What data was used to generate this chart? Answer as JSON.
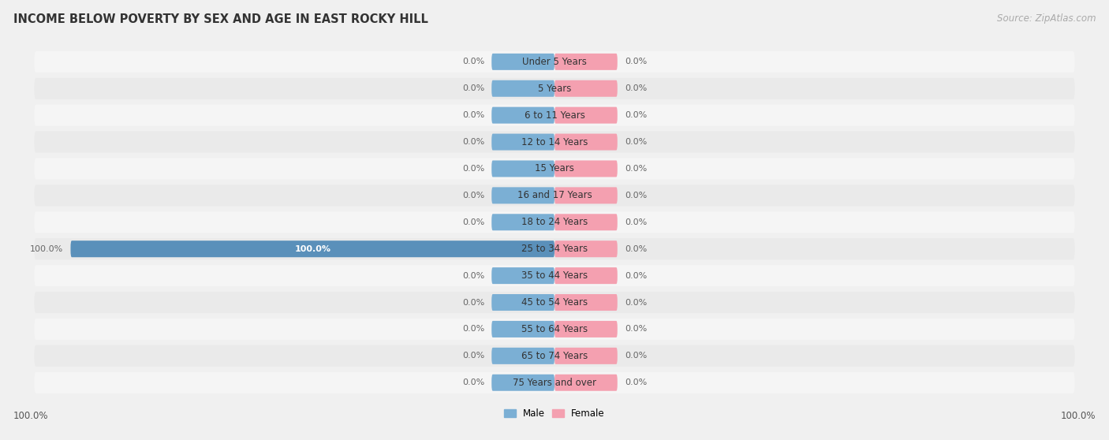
{
  "title": "INCOME BELOW POVERTY BY SEX AND AGE IN EAST ROCKY HILL",
  "source": "Source: ZipAtlas.com",
  "categories": [
    "Under 5 Years",
    "5 Years",
    "6 to 11 Years",
    "12 to 14 Years",
    "15 Years",
    "16 and 17 Years",
    "18 to 24 Years",
    "25 to 34 Years",
    "35 to 44 Years",
    "45 to 54 Years",
    "55 to 64 Years",
    "65 to 74 Years",
    "75 Years and over"
  ],
  "male_values": [
    0.0,
    0.0,
    0.0,
    0.0,
    0.0,
    0.0,
    0.0,
    100.0,
    0.0,
    0.0,
    0.0,
    0.0,
    0.0
  ],
  "female_values": [
    0.0,
    0.0,
    0.0,
    0.0,
    0.0,
    0.0,
    0.0,
    0.0,
    0.0,
    0.0,
    0.0,
    0.0,
    0.0
  ],
  "male_color": "#7bafd4",
  "male_color_dark": "#5a90ba",
  "female_color": "#f4a0b0",
  "male_label": "Male",
  "female_label": "Female",
  "bg_color": "#f0f0f0",
  "row_colors": [
    "#f5f5f5",
    "#eaeaea"
  ],
  "xlim_left": -100,
  "xlim_right": 100,
  "default_bar_extent": 13,
  "title_fontsize": 10.5,
  "label_fontsize": 8.5,
  "tick_fontsize": 8.5,
  "source_fontsize": 8.5,
  "annotation_fontsize": 8.0,
  "value_color": "#666666"
}
